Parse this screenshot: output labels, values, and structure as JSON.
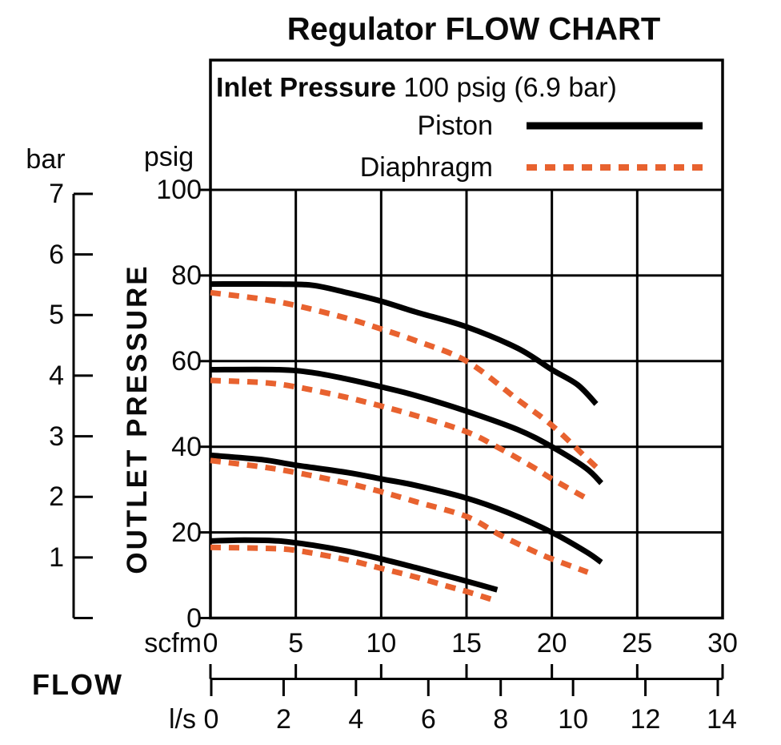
{
  "title": "Regulator FLOW CHART",
  "legend": {
    "inlet_label": "Inlet Pressure",
    "inlet_value": "100 psig (6.9 bar)",
    "entries": [
      {
        "label": "Piston",
        "style": "solid",
        "color": "#000000"
      },
      {
        "label": "Diaphragm",
        "style": "dashed",
        "color": "#E8622F"
      }
    ]
  },
  "axes": {
    "y": {
      "title": "OUTLET PRESSURE",
      "unit_left": "bar",
      "unit_right": "psig",
      "bar_ticks": [
        7,
        6,
        5,
        4,
        3,
        2,
        1
      ],
      "psig_ticks": [
        100,
        80,
        60,
        40,
        20,
        0
      ],
      "psig_range": [
        0,
        100
      ],
      "bar_range": [
        0,
        7
      ]
    },
    "x": {
      "title": "FLOW",
      "unit_primary": "scfm",
      "scfm_ticks": [
        0,
        5,
        10,
        15,
        20,
        25,
        30
      ],
      "unit_secondary": "l/s",
      "ls_ticks": [
        0,
        2,
        4,
        6,
        8,
        10,
        12,
        14
      ],
      "scfm_range": [
        0,
        30
      ],
      "ls_range": [
        0,
        14
      ]
    }
  },
  "colors": {
    "piston": "#000000",
    "diaphragm": "#E8622F",
    "grid": "#000000",
    "background": "#FFFFFF"
  },
  "chart_data": {
    "type": "line",
    "title": "Regulator FLOW CHART",
    "subtitle": "Inlet Pressure 100 psig (6.9 bar)",
    "xlabel": "FLOW (scfm / l/s)",
    "ylabel": "OUTLET PRESSURE (psig / bar)",
    "x_unit": "scfm",
    "y_unit": "psig",
    "xlim": [
      0,
      30
    ],
    "ylim": [
      0,
      100
    ],
    "grid": true,
    "legend_position": "top",
    "series": [
      {
        "id": "piston-1",
        "regulator": "Piston",
        "style": "solid",
        "color": "#000000",
        "points": [
          [
            0,
            78
          ],
          [
            4,
            78
          ],
          [
            6,
            77.7
          ],
          [
            8,
            76
          ],
          [
            10,
            74
          ],
          [
            12,
            71.5
          ],
          [
            15,
            68
          ],
          [
            18,
            63
          ],
          [
            20,
            58
          ],
          [
            21.5,
            54.5
          ],
          [
            22.6,
            50
          ]
        ]
      },
      {
        "id": "diaphragm-1",
        "regulator": "Diaphragm",
        "style": "dashed",
        "color": "#E8622F",
        "points": [
          [
            0,
            76
          ],
          [
            3,
            74.5
          ],
          [
            5,
            73
          ],
          [
            8,
            70
          ],
          [
            10,
            67.5
          ],
          [
            12,
            64.8
          ],
          [
            15,
            60
          ],
          [
            18,
            51
          ],
          [
            20,
            45
          ],
          [
            22,
            37.5
          ],
          [
            22.8,
            34.5
          ]
        ]
      },
      {
        "id": "piston-2",
        "regulator": "Piston",
        "style": "solid",
        "color": "#000000",
        "points": [
          [
            0,
            58
          ],
          [
            4,
            58
          ],
          [
            6,
            57.3
          ],
          [
            8,
            55.8
          ],
          [
            10,
            54
          ],
          [
            12,
            52
          ],
          [
            15,
            48.3
          ],
          [
            18,
            44
          ],
          [
            20,
            40
          ],
          [
            22,
            35
          ],
          [
            22.9,
            31.5
          ]
        ]
      },
      {
        "id": "diaphragm-2",
        "regulator": "Diaphragm",
        "style": "dashed",
        "color": "#E8622F",
        "points": [
          [
            0,
            55.5
          ],
          [
            3,
            55
          ],
          [
            5,
            54
          ],
          [
            8,
            51.5
          ],
          [
            10,
            49.5
          ],
          [
            12,
            47.3
          ],
          [
            15,
            43.5
          ],
          [
            17,
            39.5
          ],
          [
            19,
            35
          ],
          [
            20,
            32.5
          ],
          [
            22,
            28
          ]
        ]
      },
      {
        "id": "piston-3",
        "regulator": "Piston",
        "style": "solid",
        "color": "#000000",
        "points": [
          [
            0,
            38
          ],
          [
            3,
            37
          ],
          [
            5,
            35.7
          ],
          [
            8,
            34
          ],
          [
            10,
            32.5
          ],
          [
            12,
            31
          ],
          [
            15,
            28
          ],
          [
            17.5,
            24.5
          ],
          [
            20,
            20
          ],
          [
            22,
            15.5
          ],
          [
            22.9,
            13
          ]
        ]
      },
      {
        "id": "diaphragm-3",
        "regulator": "Diaphragm",
        "style": "dashed",
        "color": "#E8622F",
        "points": [
          [
            0,
            36.8
          ],
          [
            3,
            35.3
          ],
          [
            5,
            34
          ],
          [
            8,
            31.5
          ],
          [
            10,
            29.5
          ],
          [
            12,
            27.2
          ],
          [
            15,
            23.7
          ],
          [
            17,
            19.3
          ],
          [
            19,
            15.5
          ],
          [
            20,
            13.8
          ],
          [
            22.1,
            10.7
          ]
        ]
      },
      {
        "id": "piston-4",
        "regulator": "Piston",
        "style": "solid",
        "color": "#000000",
        "points": [
          [
            0,
            18
          ],
          [
            2,
            18.2
          ],
          [
            4,
            18
          ],
          [
            6,
            17
          ],
          [
            8,
            15.6
          ],
          [
            10,
            13.8
          ],
          [
            12,
            11.8
          ],
          [
            14,
            9.7
          ],
          [
            15,
            8.6
          ],
          [
            16.8,
            6.6
          ]
        ]
      },
      {
        "id": "diaphragm-4",
        "regulator": "Diaphragm",
        "style": "dashed",
        "color": "#E8622F",
        "points": [
          [
            0,
            16.5
          ],
          [
            3,
            16.3
          ],
          [
            5,
            15.8
          ],
          [
            8,
            13.6
          ],
          [
            10,
            11.6
          ],
          [
            12,
            9.6
          ],
          [
            14,
            7.3
          ],
          [
            15,
            6.2
          ],
          [
            16.6,
            4.2
          ]
        ]
      }
    ]
  }
}
